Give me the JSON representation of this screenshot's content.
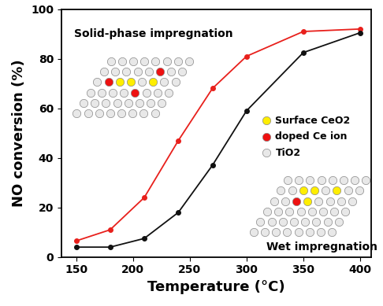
{
  "chart_data": {
    "type": "line",
    "x_label": "Temperature (°C)",
    "y_label": "NO conversion (%)",
    "x": [
      150,
      180,
      210,
      240,
      270,
      300,
      350,
      400
    ],
    "series": [
      {
        "name": "Solid-phase impregnation",
        "color": "#e8201c",
        "marker": "circle",
        "values": [
          6.5,
          11,
          24,
          47,
          68,
          81,
          91,
          92
        ]
      },
      {
        "name": "Wet impregnation",
        "color": "#111111",
        "marker": "circle",
        "values": [
          4,
          4,
          7.5,
          18,
          37,
          59,
          82.5,
          90.5
        ]
      }
    ],
    "annotations": [
      "Surface CeO2",
      "doped Ce ion",
      "TiO2"
    ],
    "xlim": [
      137,
      410
    ],
    "xticks": [
      150,
      200,
      250,
      300,
      350,
      400
    ],
    "ylim": [
      0,
      100
    ],
    "yticks": [
      0,
      20,
      40,
      60,
      80,
      100
    ]
  }
}
